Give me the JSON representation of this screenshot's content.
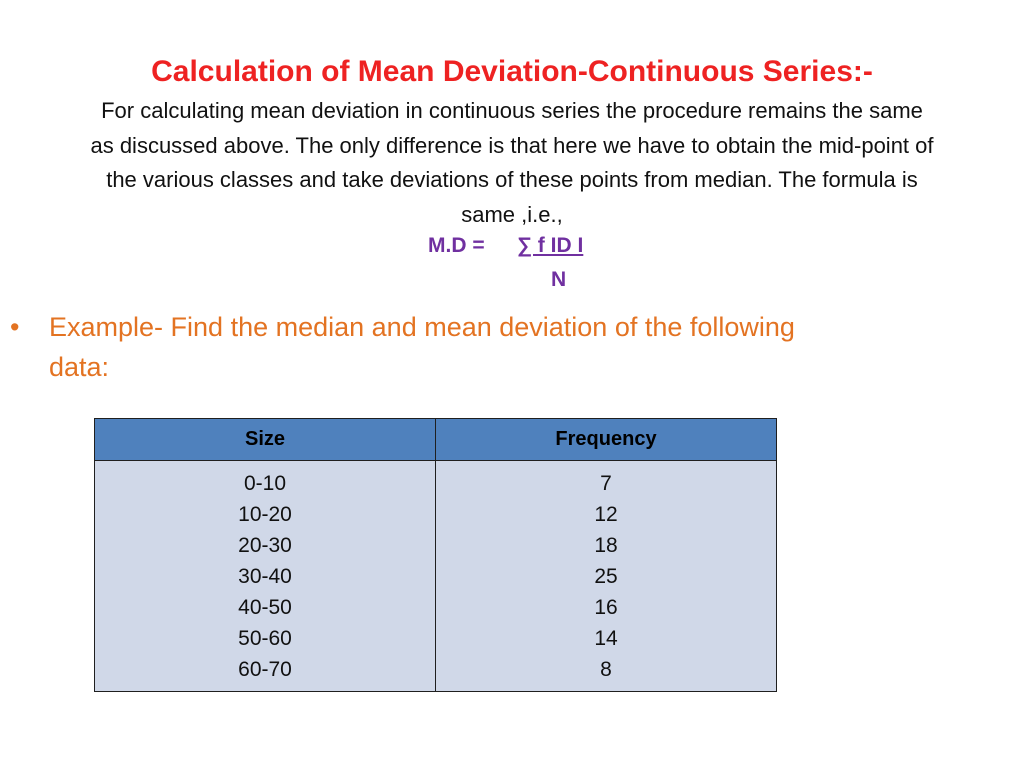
{
  "slide": {
    "title": "Calculation of Mean Deviation-Continuous Series:-",
    "intro_lines": [
      "For calculating mean deviation in continuous series the procedure remains the same",
      "as discussed above. The only difference is that here we have to obtain the mid-point of",
      "the various classes and take deviations of these points from median. The formula is",
      "same ,i.e.,"
    ],
    "formula": {
      "lhs": "M.D =",
      "numerator": "∑ f ID I",
      "denominator": "N"
    },
    "example": {
      "bullet": "•",
      "text_line_1": "Example- Find the median and mean deviation of the following",
      "text_line_2": "data:"
    },
    "colors": {
      "title": "#ee2222",
      "formula": "#7030a0",
      "example": "#e37322",
      "table_header": "#4f81bd",
      "table_body": "#d0d8e8"
    }
  },
  "table": {
    "headers": [
      "Size",
      "Frequency"
    ],
    "size": [
      "0-10",
      "10-20",
      "20-30",
      "30-40",
      "40-50",
      "50-60",
      "60-70"
    ],
    "frequency": [
      "7",
      "12",
      "18",
      "25",
      "16",
      "14",
      "8"
    ]
  }
}
